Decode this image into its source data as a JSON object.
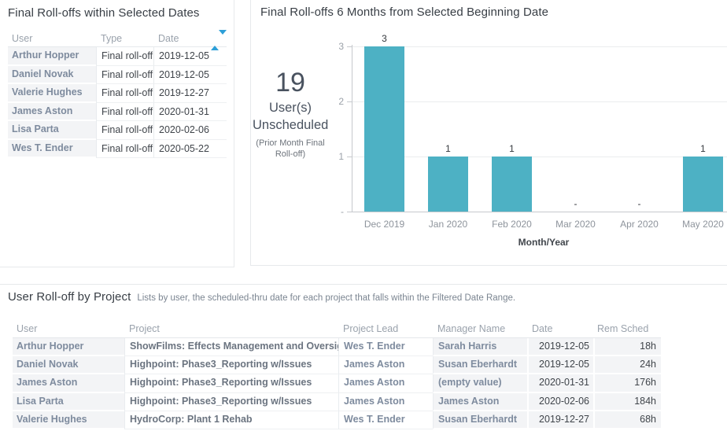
{
  "colors": {
    "bar": "#4db1c4",
    "sort_icon": "#2d9fd8",
    "name_text": "#7e8b9e",
    "shaded_cell": "#f3f4f6"
  },
  "panels": {
    "rolloffs_table": {
      "title": "Final Roll-offs within Selected Dates",
      "columns": [
        "User",
        "Type",
        "Date"
      ],
      "rows": [
        {
          "user": "Arthur Hopper",
          "type": "Final roll-off",
          "date": "2019-12-05"
        },
        {
          "user": "Daniel Novak",
          "type": "Final roll-off",
          "date": "2019-12-05"
        },
        {
          "user": "Valerie Hughes",
          "type": "Final roll-off",
          "date": "2019-12-27"
        },
        {
          "user": "James Aston",
          "type": "Final roll-off",
          "date": "2020-01-31"
        },
        {
          "user": "Lisa Parta",
          "type": "Final roll-off",
          "date": "2020-02-06"
        },
        {
          "user": "Wes T. Ender",
          "type": "Final roll-off",
          "date": "2020-05-22"
        }
      ]
    },
    "chart_panel": {
      "title": "Final Roll-offs 6 Months from Selected Beginning Date"
    },
    "project_table": {
      "title": "User Roll-off by Project",
      "subtitle": "Lists by user, the scheduled-thru date for each project that falls within the Filtered Date Range.",
      "columns": [
        "User",
        "Project",
        "Project Lead",
        "Manager Name",
        "Date",
        "Rem Sched"
      ],
      "rows": [
        {
          "user": "Arthur Hopper",
          "project": "ShowFilms: Effects Management and Oversight",
          "lead": "Wes T. Ender",
          "manager": "Sarah Harris",
          "date": "2019-12-05",
          "rem": "18h"
        },
        {
          "user": "Daniel Novak",
          "project": "Highpoint: Phase3_Reporting w/Issues",
          "lead": "James Aston",
          "manager": "Susan Eberhardt",
          "date": "2019-12-05",
          "rem": "24h"
        },
        {
          "user": "James Aston",
          "project": "Highpoint: Phase3_Reporting w/Issues",
          "lead": "James Aston",
          "manager": "(empty value)",
          "date": "2020-01-31",
          "rem": "176h"
        },
        {
          "user": "Lisa Parta",
          "project": "Highpoint: Phase3_Reporting w/Issues",
          "lead": "James Aston",
          "manager": "James Aston",
          "date": "2020-02-06",
          "rem": "184h"
        },
        {
          "user": "Valerie Hughes",
          "project": "HydroCorp: Plant 1 Rehab",
          "lead": "Wes T. Ender",
          "manager": "Susan Eberhardt",
          "date": "2019-12-27",
          "rem": "68h"
        }
      ]
    }
  },
  "chart_data": {
    "type": "bar",
    "title": "Final Roll-offs 6 Months from Selected Beginning Date",
    "categories": [
      "Dec 2019",
      "Jan 2020",
      "Feb 2020",
      "Mar 2020",
      "Apr 2020",
      "May 2020"
    ],
    "values": [
      3,
      1,
      1,
      0,
      0,
      1
    ],
    "bar_labels": [
      "3",
      "1",
      "1",
      "-",
      "-",
      "1"
    ],
    "xlabel": "Month/Year",
    "ylabel": "",
    "ylim": [
      0,
      3
    ],
    "yticks": [
      "3",
      "2",
      "1",
      "-"
    ],
    "grid": "horizontal",
    "bar_color": "#4db1c4",
    "kpi_value": "19",
    "kpi_label": "User(s) Unscheduled",
    "kpi_note": "(Prior Month Final Roll-off)"
  }
}
